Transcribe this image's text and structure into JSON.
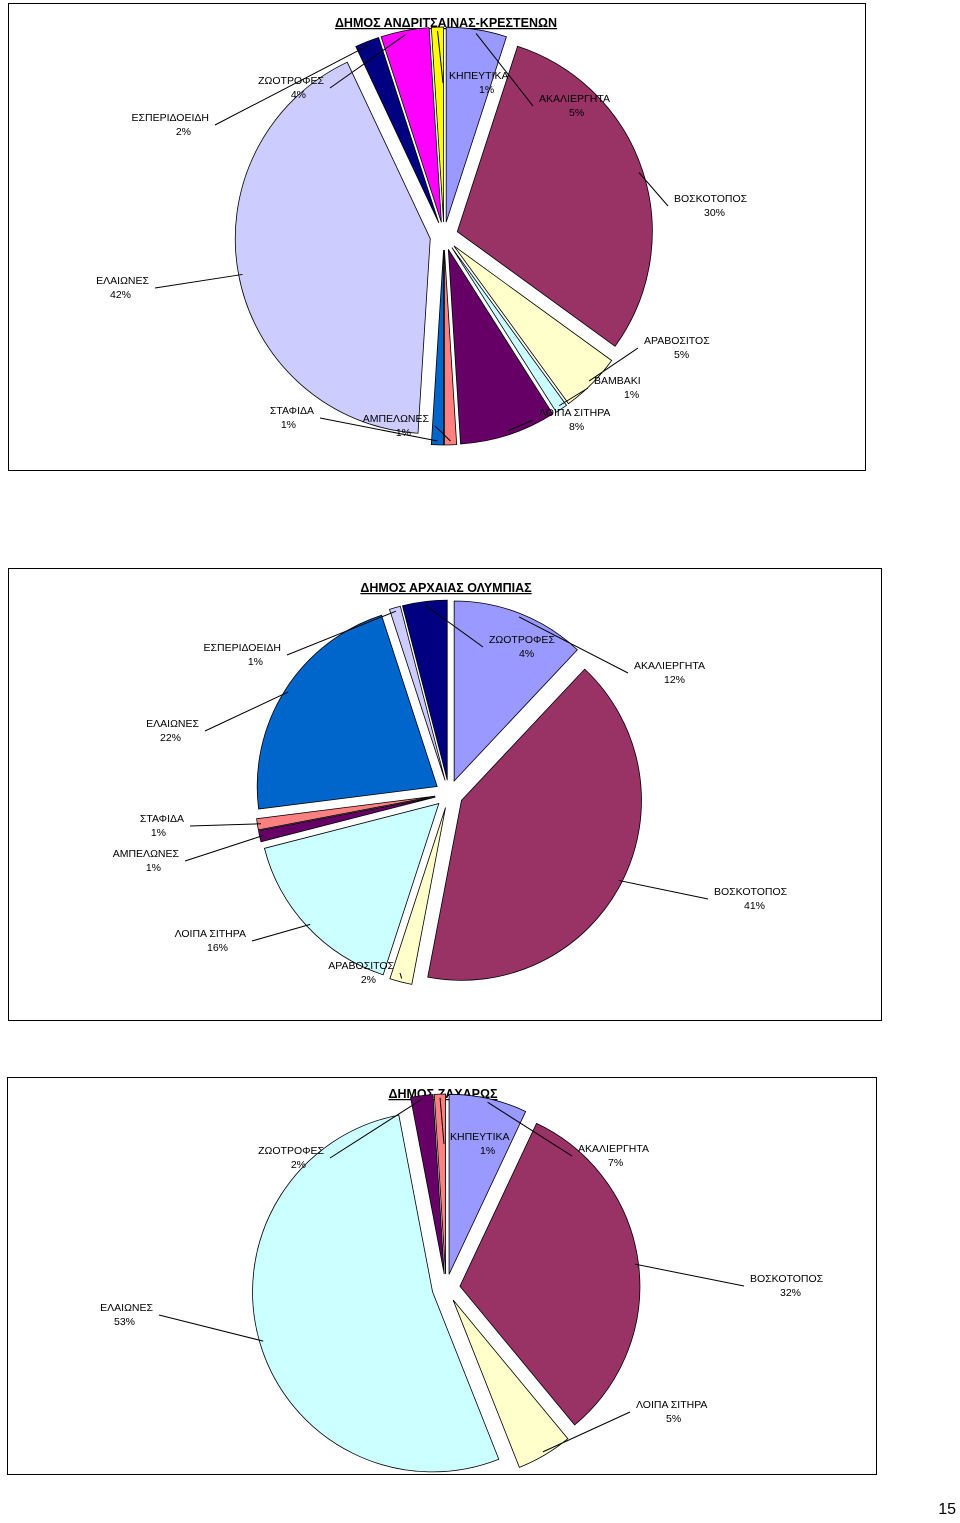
{
  "page": {
    "number": "15"
  },
  "chart_data": [
    {
      "type": "pie",
      "title": "ΔΗΜΟΣ ΑΝΔΡΙΤΣΑΙΝΑΣ-ΚΡΕΣΤΕΝΩΝ",
      "slices": [
        {
          "name": "ΑΚΑΛΙΕΡΓΗΤΑ",
          "label": "5%",
          "value": 5,
          "color": "#9999ff"
        },
        {
          "name": "ΒΟΣΚΟΤΟΠΟΣ",
          "label": "30%",
          "value": 30,
          "color": "#993366"
        },
        {
          "name": "ΑΡΑΒΟΣΙΤΟΣ",
          "label": "5%",
          "value": 5,
          "color": "#ffffcc"
        },
        {
          "name": "ΒΑΜΒΑΚΙ",
          "label": "1%",
          "value": 1,
          "color": "#ccffff"
        },
        {
          "name": "ΛΟΙΠΑ ΣΙΤΗΡΑ",
          "label": "8%",
          "value": 8,
          "color": "#660066"
        },
        {
          "name": "ΑΜΠΕΛΩΝΕΣ",
          "label": "1%",
          "value": 1,
          "color": "#ff8080"
        },
        {
          "name": "ΣΤΑΦΙΔΑ",
          "label": "1%",
          "value": 1,
          "color": "#0066cc"
        },
        {
          "name": "ΕΛΑΙΩΝΕΣ",
          "label": "42%",
          "value": 42,
          "color": "#ccccff"
        },
        {
          "name": "ΕΣΠΕΡΙΔΟΕΙΔΗ",
          "label": "2%",
          "value": 2,
          "color": "#000080"
        },
        {
          "name": "ΖΩΟΤΡΟΦΕΣ",
          "label": "4%",
          "value": 4,
          "color": "#ff00ff"
        },
        {
          "name": "ΚΗΠΕΥΤΙΚΑ",
          "label": "1%",
          "value": 1,
          "color": "#ffff00"
        }
      ]
    },
    {
      "type": "pie",
      "title": "ΔΗΜΟΣ ΑΡΧΑΙΑΣ ΟΛΥΜΠΙΑΣ",
      "slices": [
        {
          "name": "ΑΚΑΛΙΕΡΓΗΤΑ",
          "label": "12%",
          "value": 12,
          "color": "#9999ff"
        },
        {
          "name": "ΒΟΣΚΟΤΟΠΟΣ",
          "label": "41%",
          "value": 41,
          "color": "#993366"
        },
        {
          "name": "ΑΡΑΒΟΣΙΤΟΣ",
          "label": "2%",
          "value": 2,
          "color": "#ffffcc"
        },
        {
          "name": "ΛΟΙΠΑ ΣΙΤΗΡΑ",
          "label": "16%",
          "value": 16,
          "color": "#ccffff"
        },
        {
          "name": "ΑΜΠΕΛΩΝΕΣ",
          "label": "1%",
          "value": 1,
          "color": "#660066"
        },
        {
          "name": "ΣΤΑΦΙΔΑ",
          "label": "1%",
          "value": 1,
          "color": "#ff8080"
        },
        {
          "name": "ΕΛΑΙΩΝΕΣ",
          "label": "22%",
          "value": 22,
          "color": "#0066cc"
        },
        {
          "name": "ΕΣΠΕΡΙΔΟΕΙΔΗ",
          "label": "1%",
          "value": 1,
          "color": "#ccccff"
        },
        {
          "name": "ΖΩΟΤΡΟΦΕΣ",
          "label": "4%",
          "value": 4,
          "color": "#000080"
        }
      ]
    },
    {
      "type": "pie",
      "title": "ΔΗΜΟΣ ΖΑΧΑΡΩΣ",
      "slices": [
        {
          "name": "ΑΚΑΛΙΕΡΓΗΤΑ",
          "label": "7%",
          "value": 7,
          "color": "#9999ff"
        },
        {
          "name": "ΒΟΣΚΟΤΟΠΟΣ",
          "label": "32%",
          "value": 32,
          "color": "#993366"
        },
        {
          "name": "ΛΟΙΠΑ ΣΙΤΗΡΑ",
          "label": "5%",
          "value": 5,
          "color": "#ffffcc"
        },
        {
          "name": "ΕΛΑΙΩΝΕΣ",
          "label": "53%",
          "value": 53,
          "color": "#ccffff"
        },
        {
          "name": "ΖΩΟΤΡΟΦΕΣ",
          "label": "2%",
          "value": 2,
          "color": "#660066"
        },
        {
          "name": "ΚΗΠΕΥΤΙΚΑ",
          "label": "1%",
          "value": 1,
          "color": "#ff8080"
        }
      ]
    }
  ]
}
